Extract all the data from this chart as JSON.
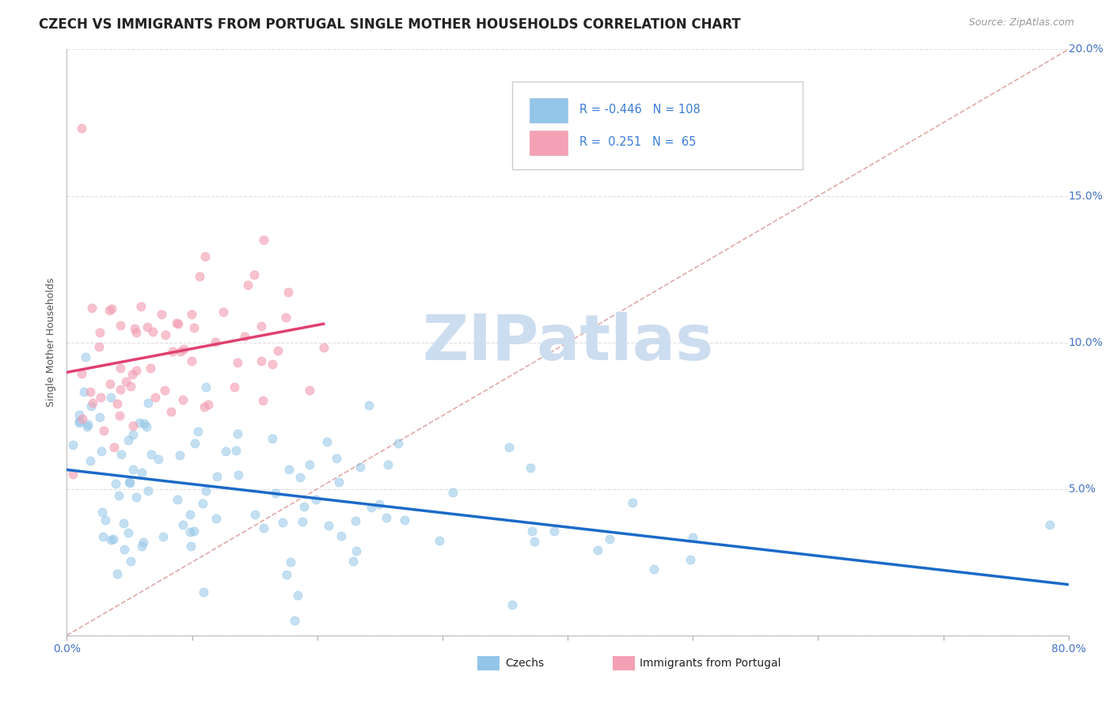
{
  "title": "CZECH VS IMMIGRANTS FROM PORTUGAL SINGLE MOTHER HOUSEHOLDS CORRELATION CHART",
  "source": "Source: ZipAtlas.com",
  "ylabel": "Single Mother Households",
  "xlim": [
    0.0,
    0.8
  ],
  "ylim": [
    0.0,
    0.2
  ],
  "xtick_positions": [
    0.0,
    0.1,
    0.2,
    0.3,
    0.4,
    0.5,
    0.6,
    0.7,
    0.8
  ],
  "xticklabels": [
    "0.0%",
    "",
    "",
    "",
    "",
    "",
    "",
    "",
    "80.0%"
  ],
  "ytick_positions": [
    0.0,
    0.05,
    0.1,
    0.15,
    0.2
  ],
  "yticklabels_right": [
    "",
    "5.0%",
    "10.0%",
    "15.0%",
    "20.0%"
  ],
  "czech_R": -0.446,
  "czech_N": 108,
  "portugal_R": 0.251,
  "portugal_N": 65,
  "czech_color": "#92C5E8",
  "portugal_color": "#F4A0B5",
  "czech_line_color": "#1B6AC8",
  "portugal_line_color": "#E04070",
  "ref_line_color": "#DDA0A0",
  "background_color": "#FFFFFF",
  "grid_color": "#D8D8D8",
  "watermark_color": "#CDDDF0",
  "title_fontsize": 12,
  "axis_label_fontsize": 9,
  "tick_fontsize": 10,
  "legend_r_n_color": "#3B7DD8",
  "legend_text_color": "#222222"
}
